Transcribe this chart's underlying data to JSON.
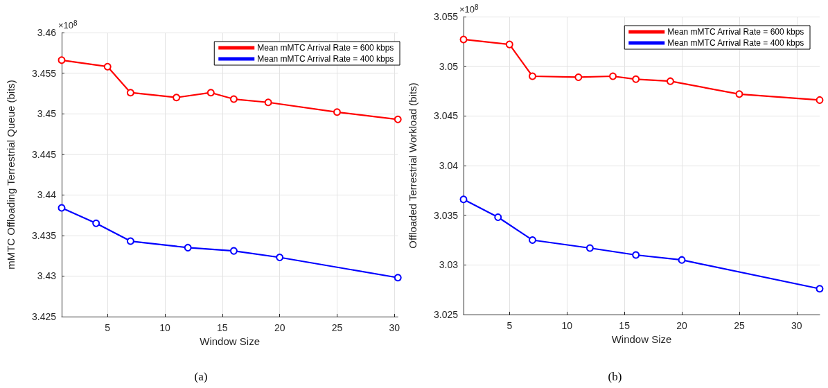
{
  "chart_data": [
    {
      "type": "line",
      "xlabel": "Window Size",
      "ylabel": "mMTC Offloading Terrestrial Queue (bits)",
      "annotations": [
        "×10$^{8}$",
        "(a)"
      ],
      "xlim": [
        1,
        30.3
      ],
      "xticks": [
        5,
        10,
        15,
        20,
        25,
        30
      ],
      "ylim": [
        3.425,
        3.46
      ],
      "yticks": [
        3.425,
        3.43,
        3.435,
        3.44,
        3.445,
        3.45,
        3.455,
        3.46
      ],
      "grid": true,
      "legend": "top right",
      "marker": "circle",
      "line_style": "solid",
      "series": [
        {
          "name": "Mean mMTC Arrival Rate = 600 kbps",
          "color": "#ff0000",
          "x": [
            1,
            5,
            7,
            11,
            14,
            16,
            19,
            25,
            30.3
          ],
          "values": [
            3.4566,
            3.4558,
            3.4526,
            3.452,
            3.4526,
            3.4518,
            3.4514,
            3.4502,
            3.4493
          ]
        },
        {
          "name": "Mean mMTC Arrival Rate = 400 kbps",
          "color": "#0000ff",
          "x": [
            1,
            4,
            7,
            12,
            16,
            20,
            30.3
          ],
          "values": [
            3.4384,
            3.4365,
            3.4343,
            3.4335,
            3.4331,
            3.4323,
            3.4298
          ]
        }
      ]
    },
    {
      "type": "line",
      "xlabel": "Window Size",
      "ylabel": "Offloaded Terrestrial Workload (bits)",
      "annotations": [
        "×10$^{8}$",
        "(b)"
      ],
      "xlim": [
        1,
        32
      ],
      "xticks": [
        5,
        10,
        15,
        20,
        25,
        30
      ],
      "ylim": [
        3.025,
        3.055
      ],
      "yticks": [
        3.025,
        3.03,
        3.035,
        3.04,
        3.045,
        3.05,
        3.055
      ],
      "grid": true,
      "legend": "top right",
      "marker": "circle",
      "line_style": "solid",
      "series": [
        {
          "name": "Mean mMTC Arrival Rate = 600 kbps",
          "color": "#ff0000",
          "x": [
            1,
            5,
            7,
            11,
            14,
            16,
            19,
            25,
            32
          ],
          "values": [
            3.0527,
            3.0522,
            3.049,
            3.0489,
            3.049,
            3.0487,
            3.0485,
            3.0472,
            3.0466
          ]
        },
        {
          "name": "Mean mMTC Arrival Rate = 400 kbps",
          "color": "#0000ff",
          "x": [
            1,
            4,
            7,
            12,
            16,
            20,
            32
          ],
          "values": [
            3.0366,
            3.0348,
            3.0325,
            3.0317,
            3.031,
            3.0305,
            3.0276
          ]
        }
      ]
    }
  ]
}
